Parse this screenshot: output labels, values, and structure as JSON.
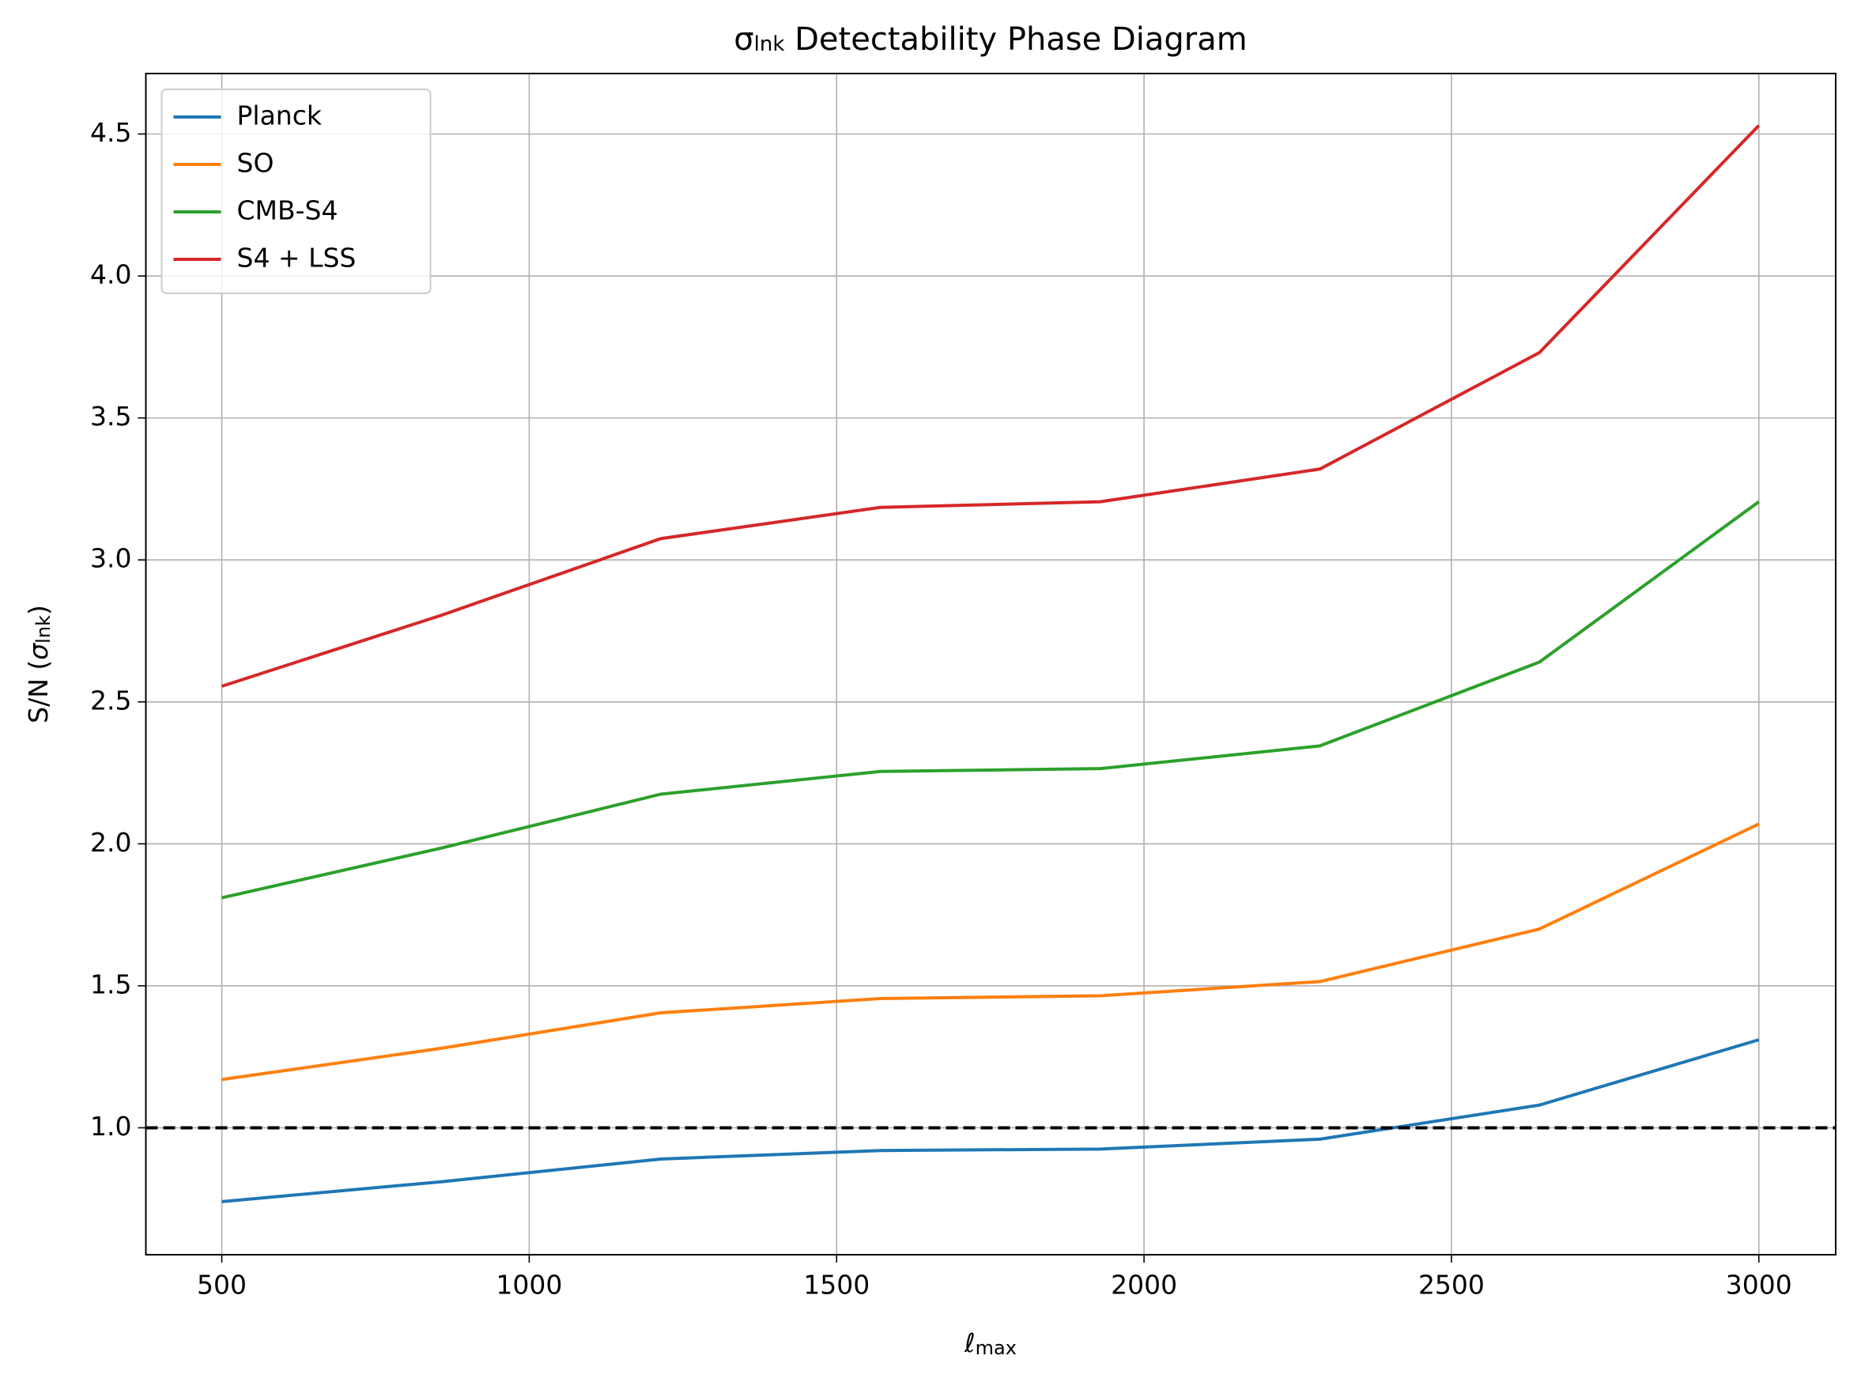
{
  "chart_data": {
    "type": "line",
    "title": {
      "symbol": "σ",
      "subscript": "lnk",
      "text": "Detectability Phase Diagram"
    },
    "xlabel": {
      "symbol": "ℓ",
      "subscript": "max"
    },
    "ylabel": {
      "text": "S/N (",
      "symbol": "σ",
      "subscript": "lnk",
      "close": ")"
    },
    "x": [
      500,
      857,
      1214,
      1571,
      1929,
      2286,
      2643,
      3000
    ],
    "series": [
      {
        "name": "Planck",
        "color": "#1f77b4",
        "values": [
          0.74,
          0.81,
          0.89,
          0.92,
          0.925,
          0.96,
          1.08,
          1.31
        ]
      },
      {
        "name": "SO",
        "color": "#ff7f0e",
        "values": [
          1.17,
          1.28,
          1.405,
          1.455,
          1.465,
          1.515,
          1.7,
          2.07
        ]
      },
      {
        "name": "CMB-S4",
        "color": "#2ca02c",
        "values": [
          1.81,
          1.985,
          2.175,
          2.255,
          2.265,
          2.345,
          2.64,
          3.205
        ]
      },
      {
        "name": "S4 + LSS",
        "color": "#d62728",
        "values": [
          2.555,
          2.805,
          3.075,
          3.185,
          3.205,
          3.32,
          3.73,
          4.53
        ]
      }
    ],
    "hline": {
      "y": 1.0,
      "color": "#000000",
      "dashed": true
    },
    "xlim": [
      376.5,
      3125
    ],
    "ylim": [
      0.553,
      4.713
    ],
    "xticks": [
      500,
      1000,
      1500,
      2000,
      2500,
      3000
    ],
    "yticks": [
      {
        "value": 1,
        "label": "1.0"
      },
      1.5,
      {
        "value": 2,
        "label": "2.0"
      },
      2.5,
      {
        "value": 3,
        "label": "3.0"
      },
      3.5,
      {
        "value": 4,
        "label": "4.0"
      },
      4.5
    ],
    "grid": true,
    "legend": "upper left"
  }
}
